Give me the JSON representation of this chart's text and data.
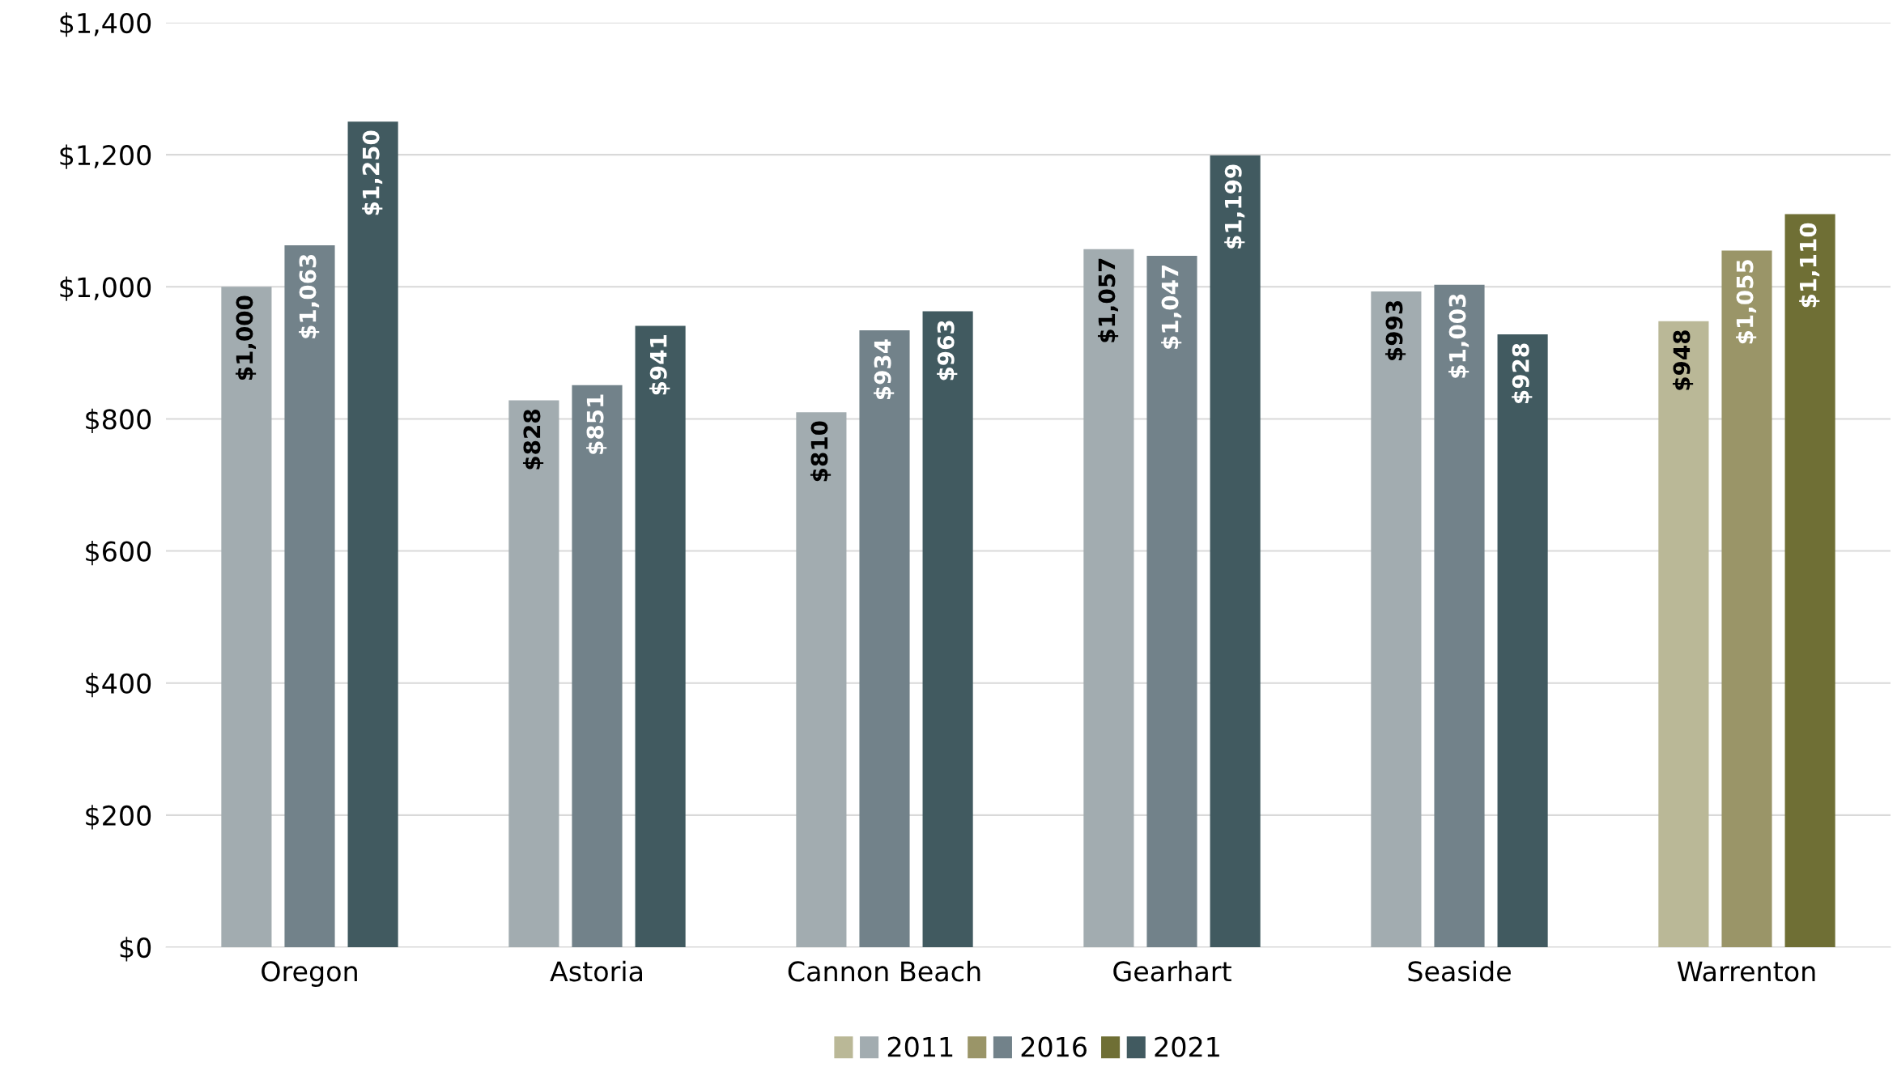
{
  "chart_data": {
    "type": "bar",
    "categories": [
      "Oregon",
      "Astoria",
      "Cannon Beach",
      "Gearhart",
      "Seaside",
      "Warrenton"
    ],
    "series": [
      {
        "name": "2011",
        "color": "#a2acb0",
        "colors": [
          "#a2acb0",
          "#a2acb0",
          "#a2acb0",
          "#a2acb0",
          "#a2acb0",
          "#bab897"
        ],
        "values": [
          1000,
          828,
          810,
          1057,
          993,
          948
        ],
        "value_labels": [
          "$1,000",
          "$828",
          "$810",
          "$1,057",
          "$993",
          "$948"
        ]
      },
      {
        "name": "2016",
        "color": "#72828a",
        "colors": [
          "#72828a",
          "#72828a",
          "#72828a",
          "#72828a",
          "#72828a",
          "#9a9568"
        ],
        "values": [
          1063,
          851,
          934,
          1047,
          1003,
          1055
        ],
        "value_labels": [
          "$1,063",
          "$851",
          "$934",
          "$1,047",
          "$1,003",
          "$1,055"
        ]
      },
      {
        "name": "2021",
        "color": "#415a60",
        "colors": [
          "#415a60",
          "#415a60",
          "#415a60",
          "#415a60",
          "#415a60",
          "#6f6f35"
        ],
        "values": [
          1250,
          941,
          963,
          1199,
          928,
          1110
        ],
        "value_labels": [
          "$1,250",
          "$941",
          "$963",
          "$1,199",
          "$928",
          "$1,110"
        ]
      }
    ],
    "ylim": [
      0,
      1400
    ],
    "yticks": [
      {
        "value": 0,
        "label": "$0"
      },
      {
        "value": 200,
        "label": "$200"
      },
      {
        "value": 400,
        "label": "$400"
      },
      {
        "value": 600,
        "label": "$600"
      },
      {
        "value": 800,
        "label": "$800"
      },
      {
        "value": 1000,
        "label": "$1,000"
      },
      {
        "value": 1200,
        "label": "$1,200"
      },
      {
        "value": 1400,
        "label": "$1,400"
      }
    ],
    "grid": "y",
    "legend": "bottom"
  }
}
